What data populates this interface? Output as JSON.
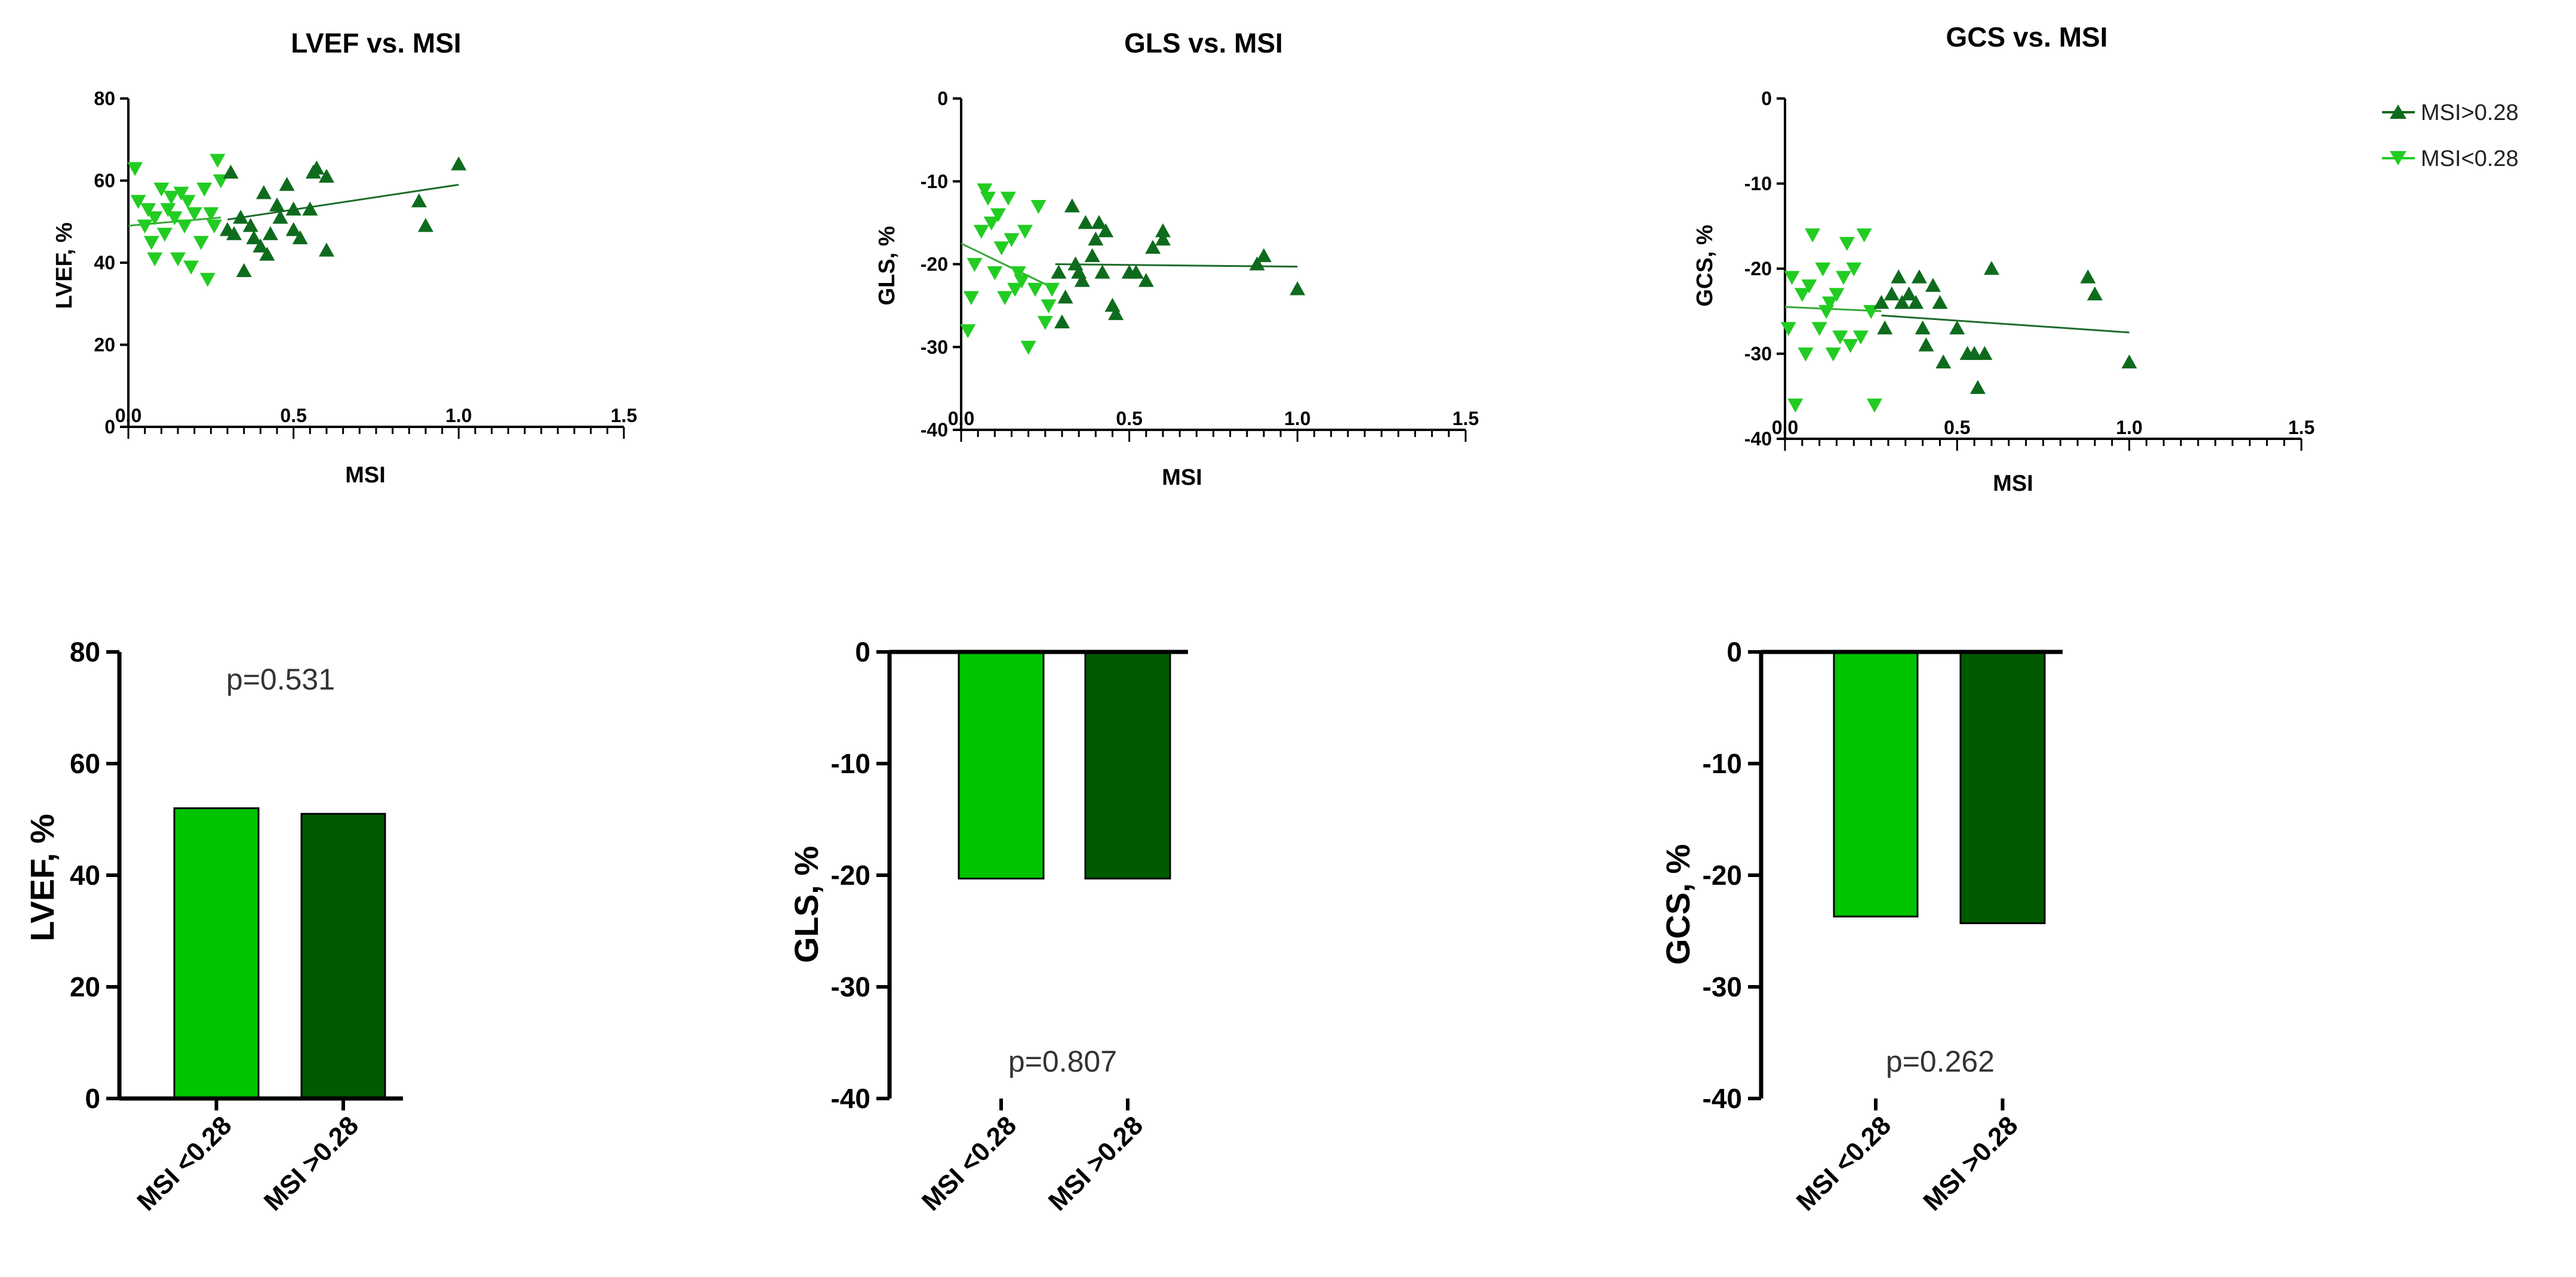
{
  "colors": {
    "light_green": "#22cc22",
    "dark_green": "#0e6b1d",
    "bar_light": "#00c400",
    "bar_dark": "#005a00",
    "axis": "#000000",
    "fit_light": "#3aa63a",
    "fit_dark": "#1f6b2b"
  },
  "legend": {
    "entries": [
      {
        "label": "MSI>0.28",
        "marker": "triangle-up",
        "color": "#0e6b1d"
      },
      {
        "label": "MSI<0.28",
        "marker": "triangle-down",
        "color": "#22cc22"
      }
    ]
  },
  "chart_data": [
    {
      "type": "scatter",
      "title": "LVEF vs. MSI",
      "xlabel": "MSI",
      "ylabel": "LVEF, %",
      "xlim": [
        0,
        1.5
      ],
      "ylim": [
        0,
        80
      ],
      "xticks": [
        "0.0",
        "0.5",
        "1.0",
        "1.5"
      ],
      "yticks": [
        "0",
        "20",
        "40",
        "60",
        "80"
      ],
      "series": [
        {
          "name": "MSI<0.28",
          "points": [
            [
              0.02,
              63
            ],
            [
              0.03,
              55
            ],
            [
              0.05,
              49
            ],
            [
              0.06,
              53
            ],
            [
              0.07,
              45
            ],
            [
              0.08,
              51
            ],
            [
              0.08,
              41
            ],
            [
              0.1,
              58
            ],
            [
              0.11,
              47
            ],
            [
              0.12,
              53
            ],
            [
              0.13,
              56
            ],
            [
              0.14,
              51
            ],
            [
              0.15,
              41
            ],
            [
              0.16,
              57
            ],
            [
              0.17,
              49
            ],
            [
              0.18,
              55
            ],
            [
              0.19,
              39
            ],
            [
              0.2,
              52
            ],
            [
              0.22,
              45
            ],
            [
              0.23,
              58
            ],
            [
              0.24,
              36
            ],
            [
              0.25,
              52
            ],
            [
              0.26,
              49
            ],
            [
              0.27,
              65
            ],
            [
              0.28,
              60
            ]
          ],
          "fit": [
            [
              0.0,
              49
            ],
            [
              0.28,
              51
            ]
          ]
        },
        {
          "name": "MSI>0.28",
          "points": [
            [
              0.3,
              48
            ],
            [
              0.31,
              62
            ],
            [
              0.32,
              47
            ],
            [
              0.34,
              51
            ],
            [
              0.35,
              38
            ],
            [
              0.37,
              49
            ],
            [
              0.38,
              46
            ],
            [
              0.4,
              44
            ],
            [
              0.41,
              57
            ],
            [
              0.42,
              42
            ],
            [
              0.43,
              47
            ],
            [
              0.45,
              54
            ],
            [
              0.46,
              51
            ],
            [
              0.48,
              59
            ],
            [
              0.5,
              53
            ],
            [
              0.5,
              48
            ],
            [
              0.52,
              46
            ],
            [
              0.55,
              53
            ],
            [
              0.56,
              62
            ],
            [
              0.57,
              63
            ],
            [
              0.6,
              61
            ],
            [
              0.6,
              43
            ],
            [
              0.88,
              55
            ],
            [
              0.9,
              49
            ],
            [
              1.0,
              64
            ]
          ],
          "fit": [
            [
              0.3,
              50.5
            ],
            [
              1.0,
              59
            ]
          ]
        }
      ]
    },
    {
      "type": "scatter",
      "title": "GLS vs. MSI",
      "xlabel": "MSI",
      "ylabel": "GLS, %",
      "xlim": [
        0,
        1.5
      ],
      "ylim": [
        -40,
        0
      ],
      "xticks": [
        "0.0",
        "0.5",
        "1.0",
        "1.5"
      ],
      "yticks": [
        "-40",
        "-30",
        "-20",
        "-10",
        "0"
      ],
      "series": [
        {
          "name": "MSI<0.28",
          "points": [
            [
              0.02,
              -28
            ],
            [
              0.03,
              -24
            ],
            [
              0.04,
              -20
            ],
            [
              0.06,
              -16
            ],
            [
              0.07,
              -11
            ],
            [
              0.08,
              -12
            ],
            [
              0.09,
              -15
            ],
            [
              0.1,
              -21
            ],
            [
              0.11,
              -14
            ],
            [
              0.12,
              -18
            ],
            [
              0.13,
              -24
            ],
            [
              0.14,
              -12
            ],
            [
              0.15,
              -17
            ],
            [
              0.16,
              -23
            ],
            [
              0.17,
              -21
            ],
            [
              0.18,
              -22
            ],
            [
              0.19,
              -16
            ],
            [
              0.2,
              -30
            ],
            [
              0.22,
              -23
            ],
            [
              0.23,
              -13
            ],
            [
              0.25,
              -27
            ],
            [
              0.26,
              -25
            ],
            [
              0.27,
              -23
            ]
          ],
          "fit": [
            [
              0.0,
              -17.5
            ],
            [
              0.28,
              -23
            ]
          ]
        },
        {
          "name": "MSI>0.28",
          "points": [
            [
              0.29,
              -21
            ],
            [
              0.3,
              -27
            ],
            [
              0.31,
              -24
            ],
            [
              0.33,
              -13
            ],
            [
              0.34,
              -20
            ],
            [
              0.35,
              -21
            ],
            [
              0.36,
              -22
            ],
            [
              0.37,
              -15
            ],
            [
              0.39,
              -19
            ],
            [
              0.4,
              -17
            ],
            [
              0.41,
              -15
            ],
            [
              0.42,
              -21
            ],
            [
              0.43,
              -16
            ],
            [
              0.45,
              -25
            ],
            [
              0.46,
              -26
            ],
            [
              0.5,
              -21
            ],
            [
              0.52,
              -21
            ],
            [
              0.55,
              -22
            ],
            [
              0.57,
              -18
            ],
            [
              0.6,
              -17
            ],
            [
              0.6,
              -16
            ],
            [
              0.88,
              -20
            ],
            [
              0.9,
              -19
            ],
            [
              1.0,
              -23
            ]
          ],
          "fit": [
            [
              0.28,
              -20
            ],
            [
              1.0,
              -20.3
            ]
          ]
        }
      ]
    },
    {
      "type": "scatter",
      "title": "GCS vs. MSI",
      "xlabel": "MSI",
      "ylabel": "GCS, %",
      "xlim": [
        0,
        1.5
      ],
      "ylim": [
        -40,
        0
      ],
      "xticks": [
        "0.0",
        "0.5",
        "1.0",
        "1.5"
      ],
      "yticks": [
        "-40",
        "-30",
        "-20",
        "-10",
        "0"
      ],
      "series": [
        {
          "name": "MSI<0.28",
          "points": [
            [
              0.01,
              -27
            ],
            [
              0.02,
              -21
            ],
            [
              0.03,
              -36
            ],
            [
              0.05,
              -23
            ],
            [
              0.06,
              -30
            ],
            [
              0.07,
              -22
            ],
            [
              0.08,
              -16
            ],
            [
              0.1,
              -27
            ],
            [
              0.11,
              -20
            ],
            [
              0.12,
              -25
            ],
            [
              0.13,
              -24
            ],
            [
              0.14,
              -30
            ],
            [
              0.15,
              -23
            ],
            [
              0.16,
              -28
            ],
            [
              0.17,
              -21
            ],
            [
              0.18,
              -17
            ],
            [
              0.19,
              -29
            ],
            [
              0.2,
              -20
            ],
            [
              0.22,
              -28
            ],
            [
              0.23,
              -16
            ],
            [
              0.25,
              -25
            ],
            [
              0.26,
              -36
            ]
          ],
          "fit": [
            [
              0.0,
              -24.5
            ],
            [
              0.28,
              -25
            ]
          ]
        },
        {
          "name": "MSI>0.28",
          "points": [
            [
              0.28,
              -24
            ],
            [
              0.29,
              -27
            ],
            [
              0.31,
              -23
            ],
            [
              0.33,
              -21
            ],
            [
              0.34,
              -24
            ],
            [
              0.36,
              -23
            ],
            [
              0.38,
              -24
            ],
            [
              0.39,
              -21
            ],
            [
              0.4,
              -27
            ],
            [
              0.41,
              -29
            ],
            [
              0.43,
              -22
            ],
            [
              0.45,
              -24
            ],
            [
              0.46,
              -31
            ],
            [
              0.5,
              -27
            ],
            [
              0.53,
              -30
            ],
            [
              0.55,
              -30
            ],
            [
              0.56,
              -34
            ],
            [
              0.58,
              -30
            ],
            [
              0.6,
              -20
            ],
            [
              0.88,
              -21
            ],
            [
              0.9,
              -23
            ],
            [
              1.0,
              -31
            ]
          ],
          "fit": [
            [
              0.28,
              -25.5
            ],
            [
              1.0,
              -27.5
            ]
          ]
        }
      ]
    },
    {
      "type": "bar",
      "ylabel": "LVEF, %",
      "ylim": [
        0,
        80
      ],
      "yticks": [
        "0",
        "20",
        "40",
        "60",
        "80"
      ],
      "categories": [
        "MSI <0.28",
        "MSI >0.28"
      ],
      "values": [
        52,
        51
      ],
      "annotation": "p=0.531",
      "annotation_pos": "top"
    },
    {
      "type": "bar",
      "ylabel": "GLS, %",
      "ylim": [
        -40,
        0
      ],
      "yticks": [
        "-40",
        "-30",
        "-20",
        "-10",
        "0"
      ],
      "categories": [
        "MSI <0.28",
        "MSI >0.28"
      ],
      "values": [
        -20.3,
        -20.3
      ],
      "annotation": "p=0.807",
      "annotation_pos": "bottom"
    },
    {
      "type": "bar",
      "ylabel": "GCS, %",
      "ylim": [
        -40,
        0
      ],
      "yticks": [
        "-40",
        "-30",
        "-20",
        "-10",
        "0"
      ],
      "categories": [
        "MSI <0.28",
        "MSI >0.28"
      ],
      "values": [
        -23.7,
        -24.3
      ],
      "annotation": "p=0.262",
      "annotation_pos": "bottom"
    }
  ]
}
